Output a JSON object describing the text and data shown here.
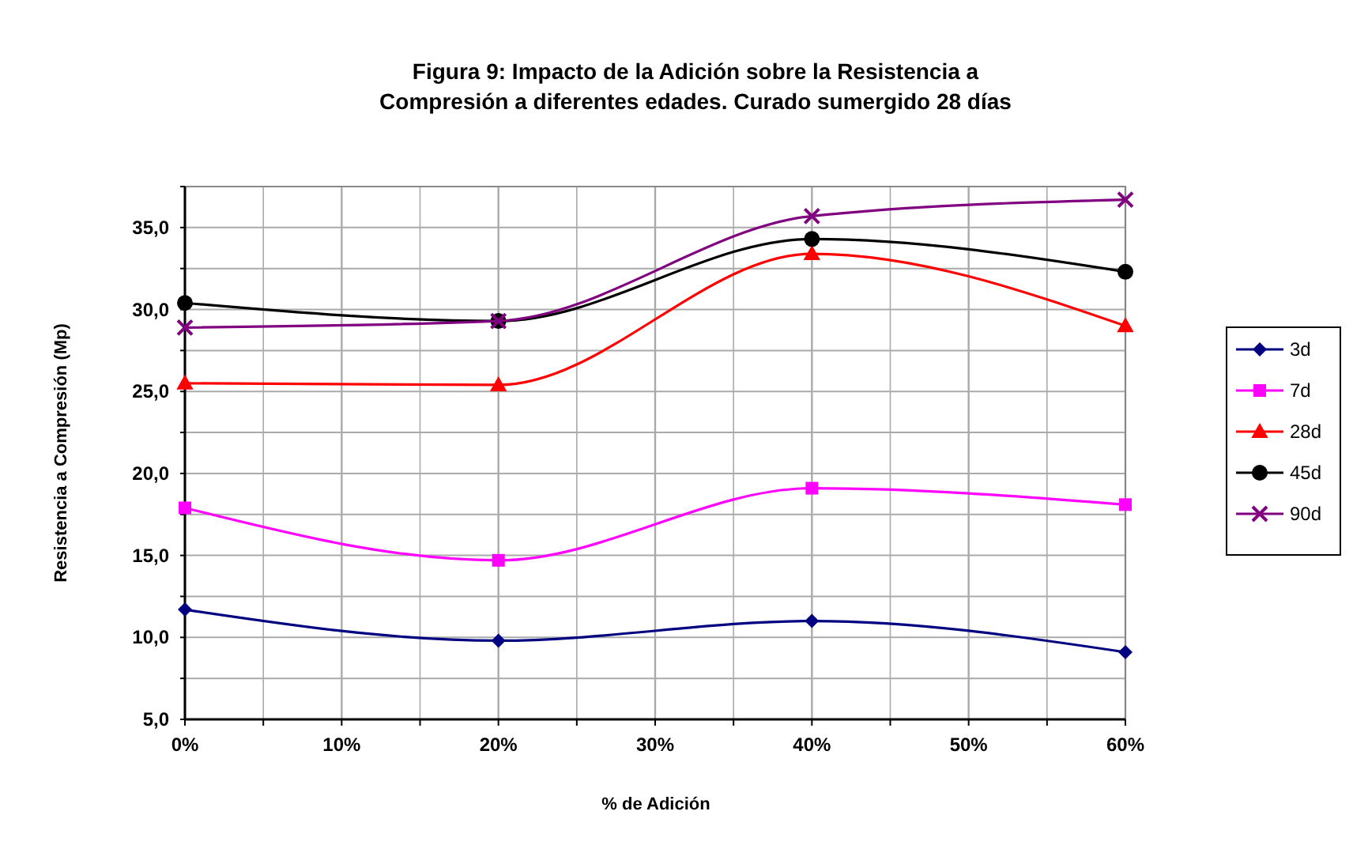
{
  "chart_data": {
    "type": "line",
    "title": "Figura 9: Impacto de la Adición sobre la Resistencia a Compresión a diferentes edades. Curado sumergido 28 días",
    "xlabel": "% de Adición",
    "ylabel": "Resistencia a Compresión (Mp)",
    "x": [
      0,
      20,
      40,
      60
    ],
    "series": [
      {
        "name": "3d",
        "color": "#000080",
        "marker": "diamond",
        "values": [
          11.7,
          9.8,
          11.0,
          9.1
        ]
      },
      {
        "name": "7d",
        "color": "#ff00ff",
        "marker": "square",
        "values": [
          17.9,
          14.7,
          19.1,
          18.1
        ]
      },
      {
        "name": "28d",
        "color": "#ff0000",
        "marker": "triangle",
        "values": [
          25.5,
          25.4,
          33.4,
          29.0
        ]
      },
      {
        "name": "45d",
        "color": "#000000",
        "marker": "circle",
        "values": [
          30.4,
          29.3,
          34.3,
          32.3
        ]
      },
      {
        "name": "90d",
        "color": "#800080",
        "marker": "cross",
        "values": [
          28.9,
          29.3,
          35.7,
          36.7
        ]
      }
    ],
    "xlim": [
      0,
      60
    ],
    "xticks": [
      {
        "value": 0,
        "label": "0%"
      },
      {
        "value": 5,
        "label": null
      },
      {
        "value": 10,
        "label": "10%"
      },
      {
        "value": 15,
        "label": null
      },
      {
        "value": 20,
        "label": "20%"
      },
      {
        "value": 25,
        "label": null
      },
      {
        "value": 30,
        "label": "30%"
      },
      {
        "value": 35,
        "label": null
      },
      {
        "value": 40,
        "label": "40%"
      },
      {
        "value": 45,
        "label": null
      },
      {
        "value": 50,
        "label": "50%"
      },
      {
        "value": 55,
        "label": null
      },
      {
        "value": 60,
        "label": "60%"
      }
    ],
    "ylim": [
      5,
      37.5
    ],
    "yticks": [
      {
        "value": 5,
        "label": "5,0"
      },
      {
        "value": 7.5,
        "label": null
      },
      {
        "value": 10,
        "label": "10,0"
      },
      {
        "value": 12.5,
        "label": null
      },
      {
        "value": 15,
        "label": "15,0"
      },
      {
        "value": 17.5,
        "label": null
      },
      {
        "value": 20,
        "label": "20,0"
      },
      {
        "value": 22.5,
        "label": null
      },
      {
        "value": 25,
        "label": "25,0"
      },
      {
        "value": 27.5,
        "label": null
      },
      {
        "value": 30,
        "label": "30,0"
      },
      {
        "value": 32.5,
        "label": null
      },
      {
        "value": 35,
        "label": "35,0"
      },
      {
        "value": 37.5,
        "label": null
      }
    ],
    "grid": true,
    "legend": "right",
    "line_style": "solid"
  }
}
